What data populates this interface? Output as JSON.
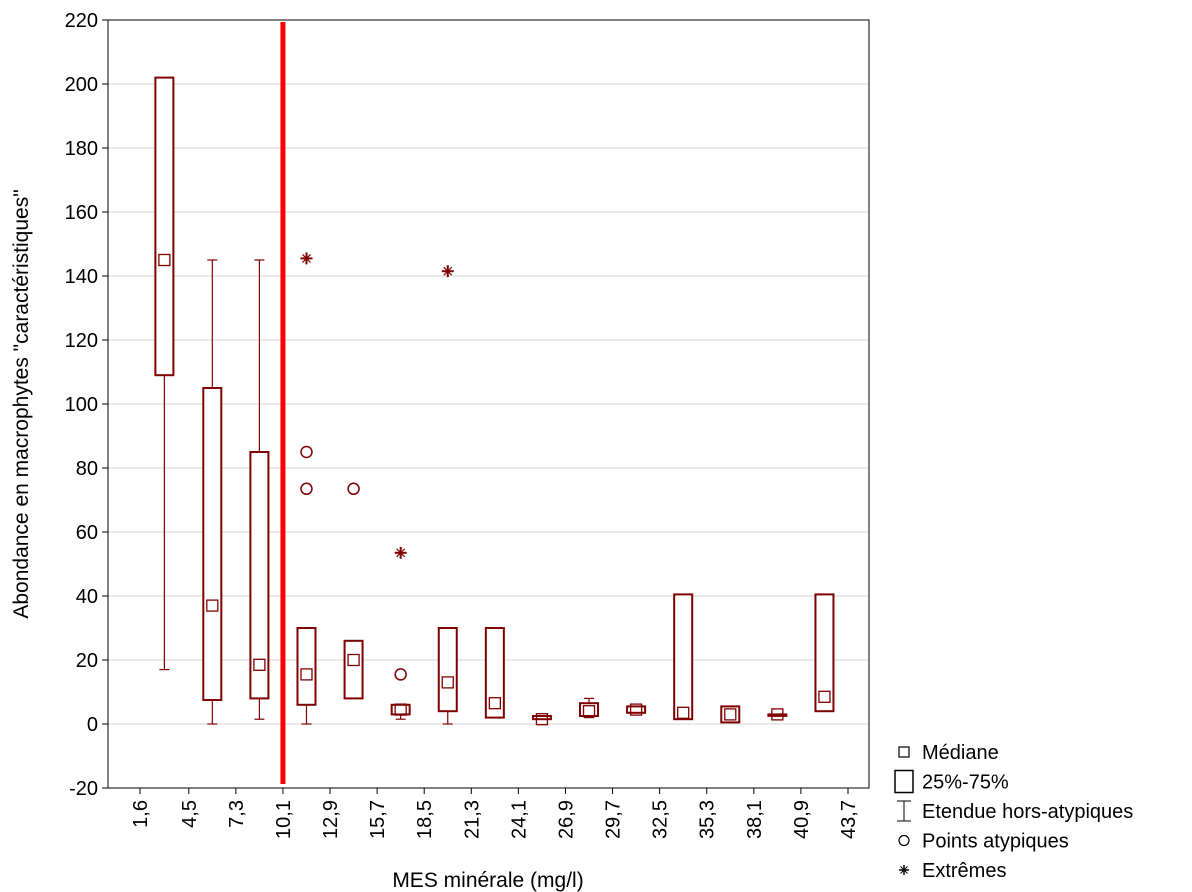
{
  "chart_data": {
    "type": "boxplot",
    "xlabel": "MES minérale (mg/l)",
    "ylabel": "Abondance en macrophytes \"caractéristiques\"",
    "ylim": [
      -20,
      220
    ],
    "yticks": [
      -20,
      0,
      20,
      40,
      60,
      80,
      100,
      120,
      140,
      160,
      180,
      200,
      220
    ],
    "xticks": [
      "1,6",
      "4,5",
      "7,3",
      "10,1",
      "12,9",
      "15,7",
      "18,5",
      "21,3",
      "24,1",
      "26,9",
      "29,7",
      "32,5",
      "35,3",
      "38,1",
      "40,9",
      "43,7"
    ],
    "grid": "horizontal",
    "color": "#7f0000",
    "threshold_line": {
      "x": 10.1,
      "color": "#ff0000"
    },
    "boxes": [
      {
        "x": 3.05,
        "median": 145,
        "q1": 109,
        "q3": 202,
        "whisker_low": 17,
        "whisker_high": 202
      },
      {
        "x": 5.9,
        "median": 37,
        "q1": 7.5,
        "q3": 105,
        "whisker_low": 0,
        "whisker_high": 145
      },
      {
        "x": 8.7,
        "median": 18.5,
        "q1": 8,
        "q3": 85,
        "whisker_low": 1.5,
        "whisker_high": 145
      },
      {
        "x": 11.5,
        "median": 15.5,
        "q1": 6,
        "q3": 30,
        "whisker_low": 0,
        "whisker_high": 30
      },
      {
        "x": 14.3,
        "median": 20,
        "q1": 8,
        "q3": 26,
        "whisker_low": 8,
        "whisker_high": 26
      },
      {
        "x": 17.1,
        "median": 4.5,
        "q1": 3,
        "q3": 6,
        "whisker_low": 1.5,
        "whisker_high": 6
      },
      {
        "x": 19.9,
        "median": 13,
        "q1": 4,
        "q3": 30,
        "whisker_low": 0,
        "whisker_high": 30
      },
      {
        "x": 22.7,
        "median": 6.5,
        "q1": 2,
        "q3": 30,
        "whisker_low": 2,
        "whisker_high": 30
      },
      {
        "x": 25.5,
        "median": 1.5,
        "q1": 1.5,
        "q3": 2.5,
        "whisker_low": 1.5,
        "whisker_high": 2.5
      },
      {
        "x": 28.3,
        "median": 4,
        "q1": 2.5,
        "q3": 6.5,
        "whisker_low": 2,
        "whisker_high": 8
      },
      {
        "x": 31.1,
        "median": 4.5,
        "q1": 3.5,
        "q3": 5.5,
        "whisker_low": 3.5,
        "whisker_high": 5.5
      },
      {
        "x": 33.9,
        "median": 3.5,
        "q1": 1.5,
        "q3": 40.5,
        "whisker_low": 1.5,
        "whisker_high": 40.5
      },
      {
        "x": 36.7,
        "median": 3,
        "q1": 0.5,
        "q3": 5.5,
        "whisker_low": 0.5,
        "whisker_high": 5.5
      },
      {
        "x": 39.5,
        "median": 3,
        "q1": 3,
        "q3": 3,
        "whisker_low": 3,
        "whisker_high": 3
      },
      {
        "x": 42.3,
        "median": 8.5,
        "q1": 4,
        "q3": 40.5,
        "whisker_low": 4,
        "whisker_high": 40.5
      }
    ],
    "outliers": [
      {
        "x": 11.5,
        "y": 85
      },
      {
        "x": 11.5,
        "y": 73.5
      },
      {
        "x": 14.3,
        "y": 73.5
      },
      {
        "x": 17.1,
        "y": 15.5
      }
    ],
    "extremes": [
      {
        "x": 11.5,
        "y": 145.5
      },
      {
        "x": 17.1,
        "y": 53.5
      },
      {
        "x": 19.9,
        "y": 141.5
      }
    ],
    "legend": {
      "placement": "bottom-right",
      "items": [
        {
          "symbol": "median",
          "label": "Médiane"
        },
        {
          "symbol": "box",
          "label": "25%-75%"
        },
        {
          "symbol": "whisker",
          "label": "Etendue hors-atypiques"
        },
        {
          "symbol": "outlier",
          "label": "Points atypiques"
        },
        {
          "symbol": "extreme",
          "label": "Extrêmes"
        }
      ]
    }
  }
}
